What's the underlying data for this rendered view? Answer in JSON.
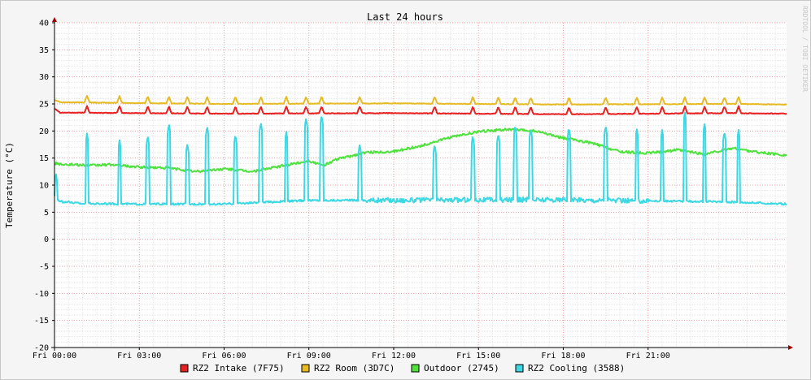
{
  "chart_data": {
    "type": "line",
    "title": "Last 24 hours",
    "ylabel": "Temperature (°C)",
    "xlabel": "",
    "ylim": [
      -20,
      40
    ],
    "yticks": [
      -20,
      -15,
      -10,
      -5,
      0,
      5,
      10,
      15,
      20,
      25,
      30,
      35,
      40
    ],
    "xlim_hours": [
      0,
      25.9
    ],
    "xticks": [
      {
        "hour": 0,
        "label": "Fri 00:00"
      },
      {
        "hour": 3,
        "label": "Fri 03:00"
      },
      {
        "hour": 6,
        "label": "Fri 06:00"
      },
      {
        "hour": 9,
        "label": "Fri 09:00"
      },
      {
        "hour": 12,
        "label": "Fri 12:00"
      },
      {
        "hour": 15,
        "label": "Fri 15:00"
      },
      {
        "hour": 18,
        "label": "Fri 18:00"
      },
      {
        "hour": 21,
        "label": "Fri 21:00"
      }
    ],
    "grid": true,
    "legend_position": "bottom",
    "side_text": "RRDTOOL / TOBI OETIKER",
    "series": [
      {
        "name": "RZ2 Intake (7F75)",
        "color": "#EA1F1F",
        "base": [
          [
            0,
            24.2
          ],
          [
            0.2,
            23.4
          ],
          [
            6,
            23.2
          ],
          [
            12,
            23.3
          ],
          [
            18,
            23.1
          ],
          [
            24,
            23.3
          ],
          [
            25.9,
            23.2
          ]
        ],
        "spikes": [
          1.15,
          2.3,
          3.3,
          4.05,
          4.7,
          5.4,
          6.4,
          7.3,
          8.2,
          8.9,
          9.45,
          10.8,
          13.45,
          14.8,
          15.7,
          16.3,
          16.85,
          18.2,
          19.5,
          20.6,
          21.5,
          22.3,
          23.0,
          23.7,
          24.2
        ]
      },
      {
        "name": "RZ2 Room (3D7C)",
        "color": "#E5BA22",
        "base": [
          [
            0,
            25.8
          ],
          [
            0.2,
            25.3
          ],
          [
            6,
            25.0
          ],
          [
            12,
            25.1
          ],
          [
            18,
            24.9
          ],
          [
            24,
            25.0
          ],
          [
            25.9,
            24.9
          ]
        ],
        "spikes": [
          1.15,
          2.3,
          3.3,
          4.05,
          4.7,
          5.4,
          6.4,
          7.3,
          8.2,
          8.9,
          9.45,
          10.8,
          13.45,
          14.8,
          15.7,
          16.3,
          16.85,
          18.2,
          19.5,
          20.6,
          21.5,
          22.3,
          23.0,
          23.7,
          24.2
        ]
      },
      {
        "name": "Outdoor (2745)",
        "color": "#4FE23D",
        "base": [
          [
            0,
            14.0
          ],
          [
            1.2,
            13.6
          ],
          [
            2.0,
            13.8
          ],
          [
            3.0,
            13.3
          ],
          [
            4.0,
            13.2
          ],
          [
            5.0,
            12.5
          ],
          [
            6.0,
            13.0
          ],
          [
            7.0,
            12.5
          ],
          [
            8.0,
            13.5
          ],
          [
            9.0,
            14.5
          ],
          [
            9.5,
            13.6
          ],
          [
            10.0,
            14.8
          ],
          [
            11.0,
            16.0
          ],
          [
            12.0,
            16.2
          ],
          [
            13.0,
            17.3
          ],
          [
            14.0,
            18.8
          ],
          [
            15.0,
            19.9
          ],
          [
            16.0,
            20.3
          ],
          [
            17.0,
            20.0
          ],
          [
            18.0,
            18.7
          ],
          [
            19.0,
            17.8
          ],
          [
            20.0,
            16.2
          ],
          [
            21.0,
            15.9
          ],
          [
            22.0,
            16.5
          ],
          [
            23.0,
            15.7
          ],
          [
            24.0,
            16.8
          ],
          [
            25.0,
            16.0
          ],
          [
            25.9,
            15.5
          ]
        ]
      },
      {
        "name": "RZ2 Cooling (3588)",
        "color": "#3CD8E4",
        "base": [
          [
            0,
            8.0
          ],
          [
            0.15,
            7.0
          ],
          [
            1.0,
            6.6
          ],
          [
            3.0,
            6.5
          ],
          [
            6.0,
            6.5
          ],
          [
            9.0,
            7.2
          ],
          [
            12.0,
            7.2
          ],
          [
            15.0,
            7.3
          ],
          [
            18.0,
            7.3
          ],
          [
            21.0,
            7.1
          ],
          [
            24.0,
            6.9
          ],
          [
            25.9,
            6.5
          ]
        ],
        "spikes": [
          [
            0.05,
            12.3
          ],
          [
            1.15,
            19.6
          ],
          [
            2.3,
            18.4
          ],
          [
            3.3,
            19.2
          ],
          [
            4.05,
            21.4
          ],
          [
            4.7,
            17.8
          ],
          [
            5.4,
            21.0
          ],
          [
            6.4,
            19.4
          ],
          [
            7.3,
            21.7
          ],
          [
            8.2,
            19.9
          ],
          [
            8.9,
            22.5
          ],
          [
            9.45,
            23.0
          ],
          [
            10.8,
            17.7
          ],
          [
            13.45,
            17.6
          ],
          [
            14.8,
            19.2
          ],
          [
            15.7,
            19.6
          ],
          [
            16.3,
            21.1
          ],
          [
            16.85,
            20.6
          ],
          [
            18.2,
            20.7
          ],
          [
            19.5,
            21.1
          ],
          [
            20.6,
            20.5
          ],
          [
            21.5,
            20.3
          ],
          [
            22.3,
            23.5
          ],
          [
            23.0,
            21.5
          ],
          [
            23.7,
            20.0
          ],
          [
            24.2,
            20.3
          ]
        ]
      }
    ]
  }
}
